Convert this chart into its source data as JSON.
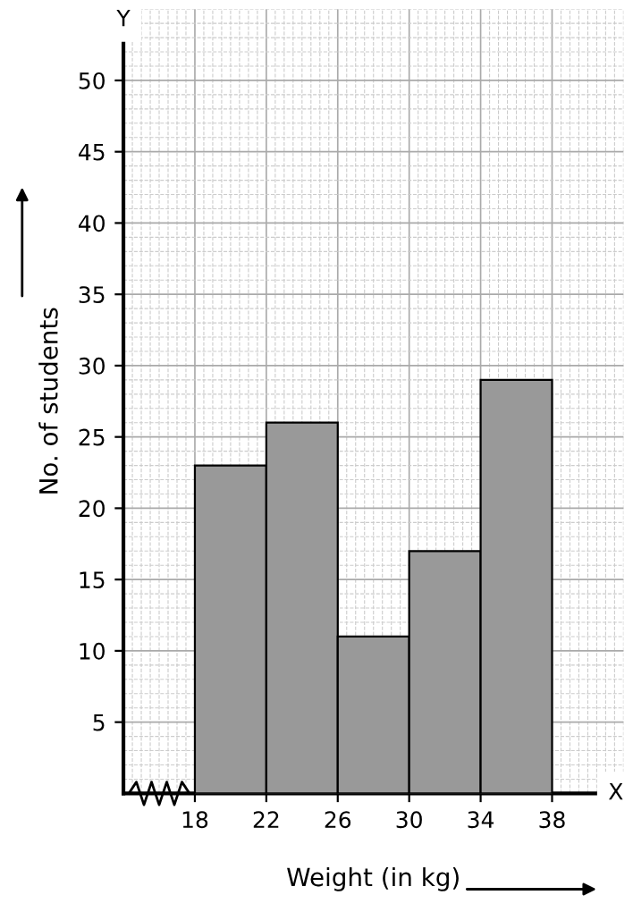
{
  "chart_data": {
    "type": "histogram",
    "xlabel": "Weight (in kg)",
    "ylabel": "No. of students",
    "bins": [
      18,
      22,
      26,
      30,
      34,
      38
    ],
    "values": [
      23,
      26,
      11,
      17,
      29
    ],
    "color": "#999999",
    "xlim": [
      14,
      42
    ],
    "ylim": [
      0,
      55
    ],
    "xticks": [
      18,
      22,
      26,
      30,
      34,
      38
    ],
    "yticks": [
      5,
      10,
      15,
      20,
      25,
      30,
      35,
      40,
      45,
      50
    ],
    "grid": true,
    "annotations": [
      "X",
      "Y"
    ]
  }
}
